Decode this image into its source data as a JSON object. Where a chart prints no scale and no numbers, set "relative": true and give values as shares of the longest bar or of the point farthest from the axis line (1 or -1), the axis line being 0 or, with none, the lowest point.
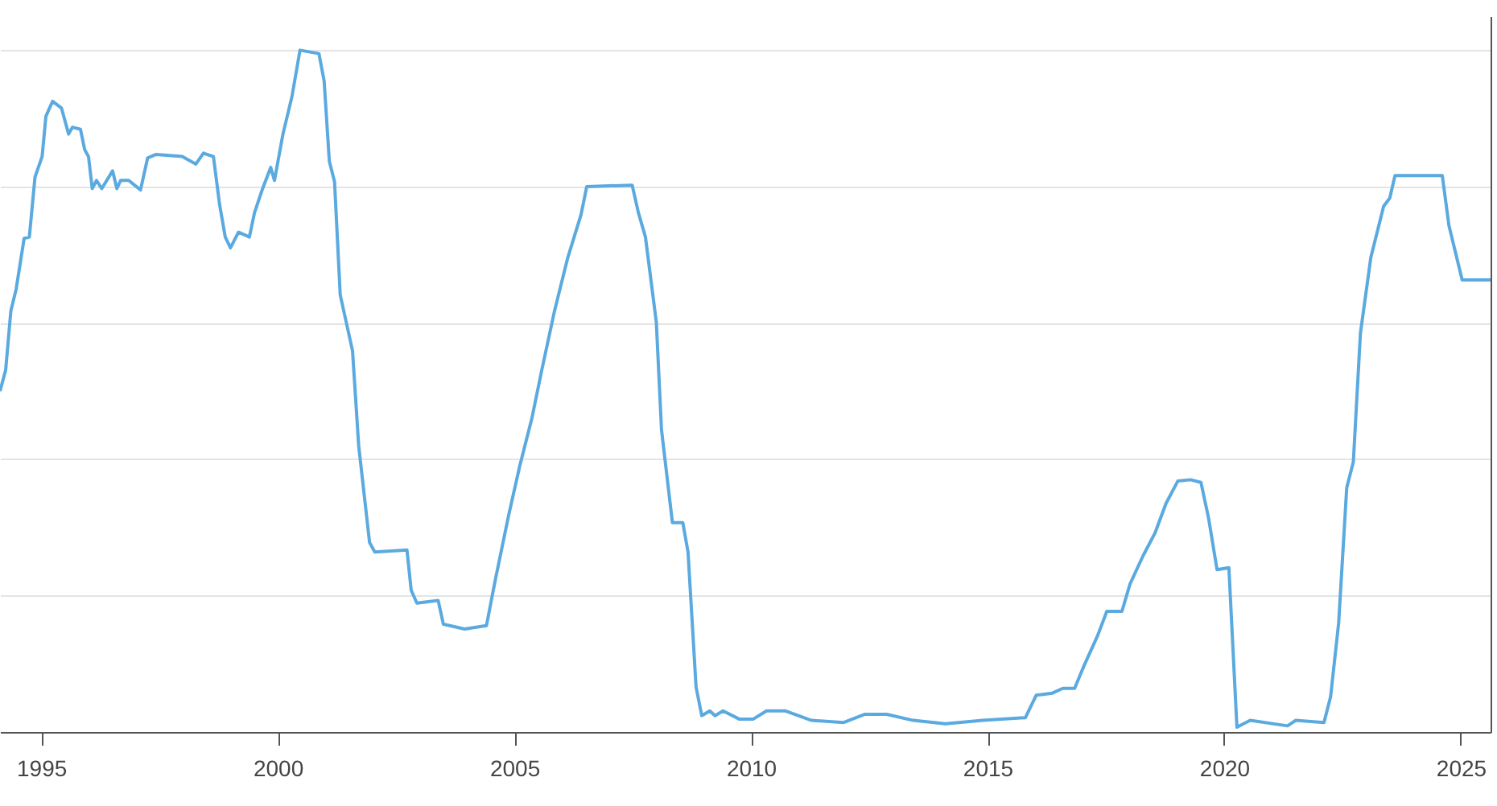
{
  "chart_data": {
    "type": "line",
    "relative": true,
    "grid": "y",
    "xlim": [
      1994.13,
      2025.63
    ],
    "xticks": [
      1995,
      2000,
      2005,
      2010,
      2015,
      2020,
      2025
    ],
    "x": [
      1994.13,
      1994.25,
      1994.36,
      1994.47,
      1994.64,
      1994.75,
      1994.87,
      1995.02,
      1995.1,
      1995.24,
      1995.43,
      1995.58,
      1995.66,
      1995.83,
      1995.92,
      1996.0,
      1996.08,
      1996.17,
      1996.28,
      1996.51,
      1996.6,
      1996.68,
      1996.85,
      1997.1,
      1997.25,
      1997.42,
      1997.98,
      1998.27,
      1998.43,
      1998.64,
      1998.77,
      1998.89,
      1999.0,
      1999.17,
      1999.4,
      1999.51,
      1999.68,
      1999.85,
      1999.93,
      2000.11,
      2000.3,
      2000.47,
      2000.87,
      2000.98,
      2001.09,
      2001.2,
      2001.32,
      2001.58,
      2001.71,
      2001.94,
      2002.05,
      2002.73,
      2002.82,
      2002.94,
      2003.39,
      2003.5,
      2003.95,
      2004.41,
      2004.6,
      2004.88,
      2005.11,
      2005.37,
      2005.58,
      2005.85,
      2006.13,
      2006.41,
      2006.53,
      2007.49,
      2007.62,
      2007.77,
      2008.0,
      2008.11,
      2008.34,
      2008.56,
      2008.67,
      2008.84,
      2008.96,
      2009.13,
      2009.24,
      2009.41,
      2009.75,
      2010.05,
      2010.33,
      2010.72,
      2011.28,
      2011.96,
      2012.41,
      2012.87,
      2013.43,
      2014.11,
      2014.9,
      2015.8,
      2016.03,
      2016.37,
      2016.59,
      2016.84,
      2017.05,
      2017.33,
      2017.52,
      2017.84,
      2018.01,
      2018.29,
      2018.54,
      2018.77,
      2019.02,
      2019.29,
      2019.51,
      2019.67,
      2019.85,
      2020.1,
      2020.27,
      2020.55,
      2021.34,
      2021.51,
      2022.11,
      2022.25,
      2022.42,
      2022.59,
      2022.73,
      2022.88,
      2023.1,
      2023.37,
      2023.5,
      2023.61,
      2024.61,
      2024.75,
      2025.03,
      2025.63
    ],
    "series": [
      {
        "color": "#5aaae0",
        "values": [
          0.5,
          0.531,
          0.618,
          0.649,
          0.724,
          0.726,
          0.814,
          0.844,
          0.903,
          0.925,
          0.915,
          0.877,
          0.887,
          0.884,
          0.854,
          0.844,
          0.797,
          0.809,
          0.797,
          0.823,
          0.797,
          0.809,
          0.809,
          0.795,
          0.842,
          0.847,
          0.844,
          0.833,
          0.849,
          0.844,
          0.774,
          0.726,
          0.71,
          0.733,
          0.726,
          0.762,
          0.797,
          0.828,
          0.809,
          0.877,
          0.932,
          1,
          0.995,
          0.955,
          0.837,
          0.807,
          0.641,
          0.559,
          0.42,
          0.278,
          0.264,
          0.267,
          0.208,
          0.189,
          0.193,
          0.158,
          0.151,
          0.156,
          0.224,
          0.318,
          0.389,
          0.46,
          0.531,
          0.618,
          0.696,
          0.759,
          0.8,
          0.802,
          0.762,
          0.726,
          0.601,
          0.443,
          0.307,
          0.307,
          0.264,
          0.066,
          0.024,
          0.031,
          0.024,
          0.031,
          0.019,
          0.019,
          0.031,
          0.031,
          0.017,
          0.014,
          0.026,
          0.026,
          0.017,
          0.012,
          0.017,
          0.021,
          0.054,
          0.057,
          0.064,
          0.064,
          0.099,
          0.142,
          0.177,
          0.177,
          0.217,
          0.259,
          0.292,
          0.335,
          0.368,
          0.37,
          0.366,
          0.314,
          0.238,
          0.241,
          0.007,
          0.017,
          0.009,
          0.017,
          0.014,
          0.052,
          0.16,
          0.358,
          0.396,
          0.585,
          0.696,
          0.771,
          0.783,
          0.816,
          0.816,
          0.743,
          0.663,
          0.663
        ]
      }
    ]
  }
}
